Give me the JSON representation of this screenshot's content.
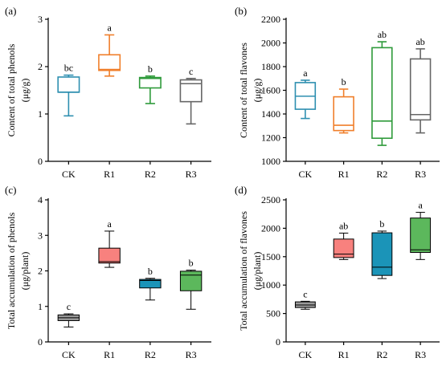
{
  "chart_data": [
    {
      "id": "a",
      "panel_label": "(a)",
      "type": "box",
      "ylabel": "Content of total phenols",
      "yunit": "(μg/g)",
      "ylim": [
        0,
        3
      ],
      "yticks": [
        0,
        1,
        2,
        3
      ],
      "categories": [
        "CK",
        "R1",
        "R2",
        "R3"
      ],
      "boxes": [
        {
          "name": "CK",
          "min": 0.96,
          "q1": 1.46,
          "median": 1.46,
          "q3": 1.78,
          "max": 1.82,
          "letter": "bc",
          "color": "#2e8fb0",
          "filled": false
        },
        {
          "name": "R1",
          "min": 1.8,
          "q1": 1.92,
          "median": 1.94,
          "q3": 2.25,
          "max": 2.67,
          "letter": "a",
          "color": "#f07f2b",
          "filled": false
        },
        {
          "name": "R2",
          "min": 1.22,
          "q1": 1.55,
          "median": 1.75,
          "q3": 1.77,
          "max": 1.8,
          "letter": "b",
          "color": "#2e9a3a",
          "filled": false
        },
        {
          "name": "R3",
          "min": 0.79,
          "q1": 1.26,
          "median": 1.64,
          "q3": 1.72,
          "max": 1.75,
          "letter": "c",
          "color": "#666666",
          "filled": false
        }
      ]
    },
    {
      "id": "b",
      "panel_label": "(b)",
      "type": "box",
      "ylabel": "Content of total flavones",
      "yunit": "(μg/g)",
      "ylim": [
        1000,
        2200
      ],
      "yticks": [
        1000,
        1200,
        1400,
        1600,
        1800,
        2000,
        2200
      ],
      "categories": [
        "CK",
        "R1",
        "R2",
        "R3"
      ],
      "boxes": [
        {
          "name": "CK",
          "min": 1362,
          "q1": 1440,
          "median": 1550,
          "q3": 1665,
          "max": 1685,
          "letter": "a",
          "color": "#2e8fb0",
          "filled": false
        },
        {
          "name": "R1",
          "min": 1240,
          "q1": 1260,
          "median": 1305,
          "q3": 1545,
          "max": 1610,
          "letter": "b",
          "color": "#f07f2b",
          "filled": false
        },
        {
          "name": "R2",
          "min": 1135,
          "q1": 1195,
          "median": 1340,
          "q3": 1960,
          "max": 2010,
          "letter": "ab",
          "color": "#2e9a3a",
          "filled": false
        },
        {
          "name": "R3",
          "min": 1240,
          "q1": 1350,
          "median": 1395,
          "q3": 1865,
          "max": 1950,
          "letter": "ab",
          "color": "#666666",
          "filled": false
        }
      ]
    },
    {
      "id": "c",
      "panel_label": "(c)",
      "type": "box",
      "ylabel": "Total accumulation of phenols",
      "yunit": "(μg/plant)",
      "ylim": [
        0,
        4
      ],
      "yticks": [
        0,
        1,
        2,
        3,
        4
      ],
      "categories": [
        "CK",
        "R1",
        "R2",
        "R3"
      ],
      "boxes": [
        {
          "name": "CK",
          "min": 0.42,
          "q1": 0.6,
          "median": 0.68,
          "q3": 0.76,
          "max": 0.79,
          "letter": "c",
          "color": "#9a9a9a",
          "filled": true
        },
        {
          "name": "R1",
          "min": 2.1,
          "q1": 2.22,
          "median": 2.26,
          "q3": 2.64,
          "max": 3.12,
          "letter": "a",
          "color": "#f8817e",
          "filled": true
        },
        {
          "name": "R2",
          "min": 1.18,
          "q1": 1.52,
          "median": 1.73,
          "q3": 1.76,
          "max": 1.79,
          "letter": "b",
          "color": "#1b94b8",
          "filled": true
        },
        {
          "name": "R3",
          "min": 0.92,
          "q1": 1.44,
          "median": 1.88,
          "q3": 1.99,
          "max": 2.02,
          "letter": "b",
          "color": "#5cb85c",
          "filled": true
        }
      ]
    },
    {
      "id": "d",
      "panel_label": "(d)",
      "type": "box",
      "ylabel": "Total accumulation of flavones",
      "yunit": "(μg/plant)",
      "ylim": [
        0,
        2500
      ],
      "yticks": [
        0,
        500,
        1000,
        1500,
        2000,
        2500
      ],
      "categories": [
        "CK",
        "R1",
        "R2",
        "R3"
      ],
      "boxes": [
        {
          "name": "CK",
          "min": 575,
          "q1": 605,
          "median": 650,
          "q3": 705,
          "max": 715,
          "letter": "c",
          "color": "#9a9a9a",
          "filled": true
        },
        {
          "name": "R1",
          "min": 1450,
          "q1": 1485,
          "median": 1545,
          "q3": 1810,
          "max": 1915,
          "letter": "ab",
          "color": "#f8817e",
          "filled": true
        },
        {
          "name": "R2",
          "min": 1115,
          "q1": 1170,
          "median": 1315,
          "q3": 1920,
          "max": 1950,
          "letter": "b",
          "color": "#1b94b8",
          "filled": true
        },
        {
          "name": "R3",
          "min": 1450,
          "q1": 1575,
          "median": 1620,
          "q3": 2180,
          "max": 2280,
          "letter": "a",
          "color": "#5cb85c",
          "filled": true
        }
      ]
    }
  ]
}
